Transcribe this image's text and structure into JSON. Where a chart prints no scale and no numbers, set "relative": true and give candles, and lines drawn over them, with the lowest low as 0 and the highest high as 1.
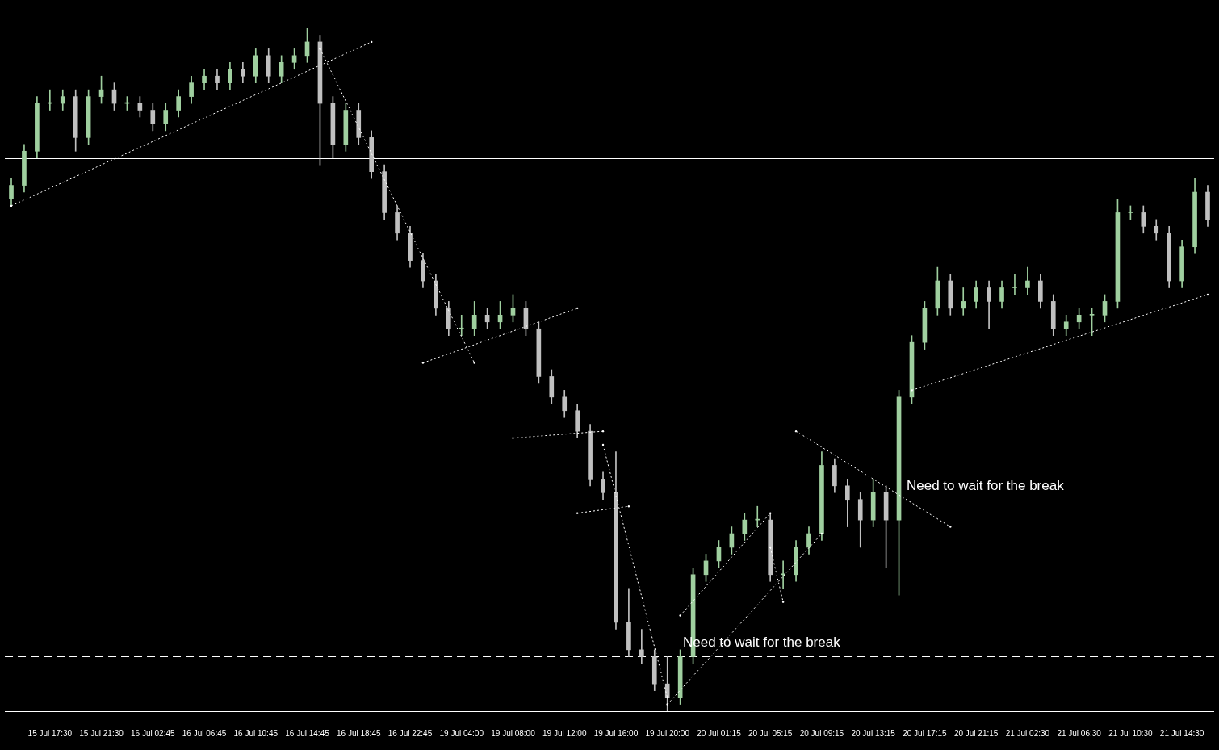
{
  "chart_data": {
    "type": "candlestick",
    "relative": true,
    "categories": [
      null,
      null,
      null,
      "15 Jul 17:30",
      null,
      null,
      null,
      "15 Jul 21:30",
      null,
      null,
      null,
      "16 Jul 02:45",
      null,
      null,
      null,
      "16 Jul 06:45",
      null,
      null,
      null,
      "16 Jul 10:45",
      null,
      null,
      null,
      "16 Jul 14:45",
      null,
      null,
      null,
      "16 Jul 18:45",
      null,
      null,
      null,
      "16 Jul 22:45",
      null,
      null,
      null,
      "19 Jul 04:00",
      null,
      null,
      null,
      "19 Jul 08:00",
      null,
      null,
      null,
      "19 Jul 12:00",
      null,
      null,
      null,
      "19 Jul 16:00",
      null,
      null,
      null,
      "19 Jul 20:00",
      null,
      null,
      null,
      "20 Jul 01:15",
      null,
      null,
      null,
      "20 Jul 05:15",
      null,
      null,
      null,
      "20 Jul 09:15",
      null,
      null,
      null,
      "20 Jul 13:15",
      null,
      null,
      null,
      "20 Jul 17:15",
      null,
      null,
      null,
      "20 Jul 21:15",
      null,
      null,
      null,
      "21 Jul 02:30",
      null,
      null,
      null,
      "21 Jul 06:30",
      null,
      null,
      null,
      "21 Jul 10:30",
      null,
      null,
      null,
      "21 Jul 14:30",
      null,
      null
    ],
    "series": [
      {
        "type": "candlestick",
        "colors": [
          "#9fcf9f",
          "#9fcf9f",
          "#9fcf9f",
          "#9fcf9f",
          "#9fcf9f",
          "#c0c0c0",
          "#9fcf9f",
          "#9fcf9f",
          "#c0c0c0",
          "#9fcf9f",
          "#c0c0c0",
          "#c0c0c0",
          "#9fcf9f",
          "#9fcf9f",
          "#9fcf9f",
          "#9fcf9f",
          "#c0c0c0",
          "#9fcf9f",
          "#c0c0c0",
          "#9fcf9f",
          "#c0c0c0",
          "#9fcf9f",
          "#9fcf9f",
          "#9fcf9f",
          "#c0c0c0",
          "#c0c0c0",
          "#9fcf9f",
          "#c0c0c0",
          "#c0c0c0",
          "#c0c0c0",
          "#c0c0c0",
          "#c0c0c0",
          "#c0c0c0",
          "#c0c0c0",
          "#c0c0c0",
          "#9fcf9f",
          "#9fcf9f",
          "#c0c0c0",
          "#9fcf9f",
          "#9fcf9f",
          "#c0c0c0",
          "#c0c0c0",
          "#c0c0c0",
          "#c0c0c0",
          "#c0c0c0",
          "#c0c0c0",
          "#c0c0c0",
          "#c0c0c0",
          "#c0c0c0",
          "#c0c0c0",
          "#c0c0c0",
          "#c0c0c0",
          "#9fcf9f",
          "#9fcf9f",
          "#9fcf9f",
          "#9fcf9f",
          "#9fcf9f",
          "#9fcf9f",
          "#9fcf9f",
          "#c0c0c0",
          "#9fcf9f",
          "#9fcf9f",
          "#9fcf9f",
          "#9fcf9f",
          "#c0c0c0",
          "#c0c0c0",
          "#c0c0c0",
          "#9fcf9f",
          "#c0c0c0",
          "#9fcf9f",
          "#9fcf9f",
          "#9fcf9f",
          "#9fcf9f",
          "#c0c0c0",
          "#9fcf9f",
          "#9fcf9f",
          "#c0c0c0",
          "#9fcf9f",
          "#9fcf9f",
          "#9fcf9f",
          "#c0c0c0",
          "#c0c0c0",
          "#9fcf9f",
          "#9fcf9f",
          "#9fcf9f",
          "#9fcf9f",
          "#9fcf9f",
          "#9fcf9f",
          "#c0c0c0",
          "#c0c0c0",
          "#c0c0c0",
          "#9fcf9f",
          "#9fcf9f",
          "#c0c0c0"
        ],
        "ohlc": [
          [
            0.75,
            0.78,
            0.74,
            0.77
          ],
          [
            0.77,
            0.83,
            0.76,
            0.82
          ],
          [
            0.82,
            0.9,
            0.81,
            0.89
          ],
          [
            0.89,
            0.91,
            0.88,
            0.89
          ],
          [
            0.89,
            0.91,
            0.88,
            0.9
          ],
          [
            0.9,
            0.91,
            0.82,
            0.84
          ],
          [
            0.84,
            0.91,
            0.83,
            0.9
          ],
          [
            0.9,
            0.93,
            0.89,
            0.91
          ],
          [
            0.91,
            0.92,
            0.88,
            0.89
          ],
          [
            0.89,
            0.9,
            0.88,
            0.89
          ],
          [
            0.89,
            0.9,
            0.87,
            0.88
          ],
          [
            0.88,
            0.89,
            0.85,
            0.86
          ],
          [
            0.86,
            0.89,
            0.85,
            0.88
          ],
          [
            0.88,
            0.91,
            0.87,
            0.9
          ],
          [
            0.9,
            0.93,
            0.89,
            0.92
          ],
          [
            0.92,
            0.94,
            0.91,
            0.93
          ],
          [
            0.93,
            0.94,
            0.91,
            0.92
          ],
          [
            0.92,
            0.95,
            0.91,
            0.94
          ],
          [
            0.94,
            0.95,
            0.92,
            0.93
          ],
          [
            0.93,
            0.97,
            0.92,
            0.96
          ],
          [
            0.96,
            0.97,
            0.92,
            0.93
          ],
          [
            0.93,
            0.96,
            0.92,
            0.95
          ],
          [
            0.95,
            0.97,
            0.94,
            0.96
          ],
          [
            0.96,
            1,
            0.95,
            0.98
          ],
          [
            0.98,
            0.99,
            0.8,
            0.89
          ],
          [
            0.89,
            0.9,
            0.81,
            0.83
          ],
          [
            0.83,
            0.89,
            0.82,
            0.88
          ],
          [
            0.88,
            0.89,
            0.83,
            0.84
          ],
          [
            0.84,
            0.85,
            0.78,
            0.79
          ],
          [
            0.79,
            0.8,
            0.72,
            0.73
          ],
          [
            0.73,
            0.74,
            0.69,
            0.7
          ],
          [
            0.7,
            0.71,
            0.65,
            0.66
          ],
          [
            0.66,
            0.67,
            0.62,
            0.63
          ],
          [
            0.63,
            0.64,
            0.58,
            0.59
          ],
          [
            0.59,
            0.6,
            0.55,
            0.56
          ],
          [
            0.56,
            0.58,
            0.55,
            0.56
          ],
          [
            0.56,
            0.6,
            0.55,
            0.58
          ],
          [
            0.58,
            0.59,
            0.56,
            0.57
          ],
          [
            0.57,
            0.6,
            0.56,
            0.58
          ],
          [
            0.58,
            0.61,
            0.57,
            0.59
          ],
          [
            0.59,
            0.6,
            0.55,
            0.56
          ],
          [
            0.56,
            0.57,
            0.48,
            0.49
          ],
          [
            0.49,
            0.5,
            0.45,
            0.46
          ],
          [
            0.46,
            0.47,
            0.43,
            0.44
          ],
          [
            0.44,
            0.45,
            0.4,
            0.41
          ],
          [
            0.41,
            0.42,
            0.33,
            0.34
          ],
          [
            0.34,
            0.35,
            0.31,
            0.32
          ],
          [
            0.32,
            0.38,
            0.12,
            0.13
          ],
          [
            0.13,
            0.18,
            0.08,
            0.09
          ],
          [
            0.09,
            0.12,
            0.07,
            0.08
          ],
          [
            0.08,
            0.09,
            0.03,
            0.04
          ],
          [
            0.04,
            0.08,
            0,
            0.02
          ],
          [
            0.02,
            0.09,
            0.01,
            0.08
          ],
          [
            0.08,
            0.21,
            0.07,
            0.2
          ],
          [
            0.2,
            0.23,
            0.19,
            0.22
          ],
          [
            0.22,
            0.25,
            0.21,
            0.24
          ],
          [
            0.24,
            0.27,
            0.23,
            0.26
          ],
          [
            0.26,
            0.29,
            0.25,
            0.28
          ],
          [
            0.28,
            0.3,
            0.27,
            0.28
          ],
          [
            0.28,
            0.29,
            0.19,
            0.2
          ],
          [
            0.2,
            0.22,
            0.18,
            0.2
          ],
          [
            0.2,
            0.25,
            0.19,
            0.24
          ],
          [
            0.24,
            0.27,
            0.23,
            0.26
          ],
          [
            0.26,
            0.38,
            0.25,
            0.36
          ],
          [
            0.36,
            0.37,
            0.32,
            0.33
          ],
          [
            0.33,
            0.34,
            0.27,
            0.31
          ],
          [
            0.31,
            0.32,
            0.24,
            0.28
          ],
          [
            0.28,
            0.34,
            0.27,
            0.32
          ],
          [
            0.32,
            0.33,
            0.21,
            0.28
          ],
          [
            0.28,
            0.47,
            0.17,
            0.46
          ],
          [
            0.46,
            0.55,
            0.45,
            0.54
          ],
          [
            0.54,
            0.6,
            0.53,
            0.59
          ],
          [
            0.59,
            0.65,
            0.58,
            0.63
          ],
          [
            0.63,
            0.64,
            0.58,
            0.59
          ],
          [
            0.59,
            0.62,
            0.58,
            0.6
          ],
          [
            0.6,
            0.63,
            0.59,
            0.62
          ],
          [
            0.62,
            0.63,
            0.56,
            0.6
          ],
          [
            0.6,
            0.63,
            0.59,
            0.62
          ],
          [
            0.62,
            0.64,
            0.61,
            0.62
          ],
          [
            0.62,
            0.65,
            0.61,
            0.63
          ],
          [
            0.63,
            0.64,
            0.59,
            0.6
          ],
          [
            0.6,
            0.61,
            0.55,
            0.56
          ],
          [
            0.56,
            0.58,
            0.55,
            0.57
          ],
          [
            0.57,
            0.59,
            0.56,
            0.58
          ],
          [
            0.58,
            0.59,
            0.55,
            0.58
          ],
          [
            0.58,
            0.61,
            0.57,
            0.6
          ],
          [
            0.6,
            0.75,
            0.59,
            0.73
          ],
          [
            0.73,
            0.74,
            0.72,
            0.73
          ],
          [
            0.73,
            0.74,
            0.7,
            0.71
          ],
          [
            0.71,
            0.72,
            0.69,
            0.7
          ],
          [
            0.7,
            0.71,
            0.62,
            0.63
          ],
          [
            0.63,
            0.69,
            0.62,
            0.68
          ],
          [
            0.68,
            0.78,
            0.67,
            0.76
          ],
          [
            0.76,
            0.77,
            0.71,
            0.72
          ]
        ]
      },
      {
        "type": "line",
        "color": "#ffffff",
        "line_style": "dotted",
        "values": [
          0.74,
          null,
          null,
          null,
          null,
          null,
          null,
          null,
          null,
          null,
          null,
          null,
          null,
          null,
          null,
          null,
          null,
          null,
          null,
          null,
          null,
          null,
          null,
          null,
          null,
          null,
          null,
          null,
          0.98,
          null,
          null,
          null,
          null,
          null,
          null,
          null,
          null,
          null,
          null,
          null,
          null,
          null,
          null,
          null,
          null,
          null,
          null,
          null,
          null,
          null,
          null,
          null,
          null,
          null,
          null,
          null,
          null,
          null,
          null,
          null,
          null,
          null,
          null,
          null,
          null,
          null,
          null,
          null,
          null,
          null,
          null,
          null,
          null,
          null,
          null,
          null,
          null,
          null,
          null,
          null,
          null,
          null,
          null,
          null,
          null,
          null,
          null,
          null,
          null,
          null,
          null,
          null,
          null,
          null
        ]
      },
      {
        "type": "line",
        "color": "#ffffff",
        "line_style": "dotted",
        "values": [
          null,
          null,
          null,
          null,
          null,
          null,
          null,
          null,
          null,
          null,
          null,
          null,
          null,
          null,
          null,
          null,
          null,
          null,
          null,
          null,
          null,
          null,
          null,
          null,
          0.97,
          null,
          null,
          null,
          null,
          null,
          null,
          null,
          null,
          null,
          null,
          null,
          0.51,
          null,
          null,
          null,
          null,
          null,
          null,
          null,
          null,
          null,
          null,
          null,
          null,
          null,
          null,
          null,
          null,
          null,
          null,
          null,
          null,
          null,
          null,
          null,
          null,
          null,
          null,
          null,
          null,
          null,
          null,
          null,
          null,
          null,
          null,
          null,
          null,
          null,
          null,
          null,
          null,
          null,
          null,
          null,
          null,
          null,
          null,
          null,
          null,
          null,
          null,
          null,
          null,
          null,
          null,
          null,
          null,
          null
        ]
      },
      {
        "type": "line",
        "color": "#ffffff",
        "line_style": "dotted",
        "values": [
          null,
          null,
          null,
          null,
          null,
          null,
          null,
          null,
          null,
          null,
          null,
          null,
          null,
          null,
          null,
          null,
          null,
          null,
          null,
          null,
          null,
          null,
          null,
          null,
          null,
          null,
          null,
          null,
          null,
          null,
          null,
          null,
          0.51,
          null,
          null,
          null,
          null,
          null,
          null,
          null,
          null,
          null,
          null,
          null,
          0.59,
          null,
          null,
          null,
          null,
          null,
          null,
          null,
          null,
          null,
          null,
          null,
          null,
          null,
          null,
          null,
          null,
          null,
          null,
          null,
          null,
          null,
          null,
          null,
          null,
          null,
          null,
          null,
          null,
          null,
          null,
          null,
          null,
          null,
          null,
          null,
          null,
          null,
          null,
          null,
          null,
          null,
          null,
          null,
          null,
          null,
          null,
          null,
          null,
          null
        ]
      },
      {
        "type": "line",
        "color": "#ffffff",
        "line_style": "dotted",
        "values": [
          null,
          null,
          null,
          null,
          null,
          null,
          null,
          null,
          null,
          null,
          null,
          null,
          null,
          null,
          null,
          null,
          null,
          null,
          null,
          null,
          null,
          null,
          null,
          null,
          null,
          null,
          null,
          null,
          null,
          null,
          null,
          null,
          null,
          null,
          null,
          null,
          null,
          null,
          null,
          0.4,
          null,
          null,
          null,
          null,
          null,
          null,
          0.41,
          null,
          null,
          null,
          null,
          null,
          null,
          null,
          null,
          null,
          null,
          null,
          null,
          null,
          null,
          null,
          null,
          null,
          null,
          null,
          null,
          null,
          null,
          null,
          null,
          null,
          null,
          null,
          null,
          null,
          null,
          null,
          null,
          null,
          null,
          null,
          null,
          null,
          null,
          null,
          null,
          null,
          null,
          null,
          null,
          null,
          null,
          null
        ]
      },
      {
        "type": "line",
        "color": "#ffffff",
        "line_style": "dotted",
        "values": [
          null,
          null,
          null,
          null,
          null,
          null,
          null,
          null,
          null,
          null,
          null,
          null,
          null,
          null,
          null,
          null,
          null,
          null,
          null,
          null,
          null,
          null,
          null,
          null,
          null,
          null,
          null,
          null,
          null,
          null,
          null,
          null,
          null,
          null,
          null,
          null,
          null,
          null,
          null,
          null,
          null,
          null,
          null,
          null,
          0.29,
          null,
          null,
          null,
          0.3,
          null,
          null,
          null,
          null,
          null,
          null,
          null,
          null,
          null,
          null,
          null,
          null,
          null,
          null,
          null,
          null,
          null,
          null,
          null,
          null,
          null,
          null,
          null,
          null,
          null,
          null,
          null,
          null,
          null,
          null,
          null,
          null,
          null,
          null,
          null,
          null,
          null,
          null,
          null,
          null,
          null,
          null,
          null,
          null,
          null
        ]
      },
      {
        "type": "line",
        "color": "#ffffff",
        "line_style": "dotted",
        "values": [
          null,
          null,
          null,
          null,
          null,
          null,
          null,
          null,
          null,
          null,
          null,
          null,
          null,
          null,
          null,
          null,
          null,
          null,
          null,
          null,
          null,
          null,
          null,
          null,
          null,
          null,
          null,
          null,
          null,
          null,
          null,
          null,
          null,
          null,
          null,
          null,
          null,
          null,
          null,
          null,
          null,
          null,
          null,
          null,
          null,
          null,
          0.39,
          null,
          null,
          null,
          null,
          0.02,
          null,
          null,
          null,
          null,
          null,
          null,
          null,
          null,
          null,
          null,
          null,
          null,
          null,
          null,
          null,
          null,
          null,
          null,
          null,
          null,
          null,
          null,
          null,
          null,
          null,
          null,
          null,
          null,
          null,
          null,
          null,
          null,
          null,
          null,
          null,
          null,
          null,
          null,
          null,
          null,
          null,
          null
        ]
      },
      {
        "type": "line",
        "color": "#ffffff",
        "line_style": "dotted",
        "values": [
          null,
          null,
          null,
          null,
          null,
          null,
          null,
          null,
          null,
          null,
          null,
          null,
          null,
          null,
          null,
          null,
          null,
          null,
          null,
          null,
          null,
          null,
          null,
          null,
          null,
          null,
          null,
          null,
          null,
          null,
          null,
          null,
          null,
          null,
          null,
          null,
          null,
          null,
          null,
          null,
          null,
          null,
          null,
          null,
          null,
          null,
          null,
          null,
          null,
          null,
          null,
          null,
          0.14,
          null,
          null,
          null,
          null,
          null,
          null,
          0.29,
          null,
          null,
          null,
          null,
          null,
          null,
          null,
          null,
          null,
          null,
          null,
          null,
          null,
          null,
          null,
          null,
          null,
          null,
          null,
          null,
          null,
          null,
          null,
          null,
          null,
          null,
          null,
          null,
          null,
          null,
          null,
          null,
          null,
          null
        ]
      },
      {
        "type": "line",
        "color": "#ffffff",
        "line_style": "dotted",
        "values": [
          null,
          null,
          null,
          null,
          null,
          null,
          null,
          null,
          null,
          null,
          null,
          null,
          null,
          null,
          null,
          null,
          null,
          null,
          null,
          null,
          null,
          null,
          null,
          null,
          null,
          null,
          null,
          null,
          null,
          null,
          null,
          null,
          null,
          null,
          null,
          null,
          null,
          null,
          null,
          null,
          null,
          null,
          null,
          null,
          null,
          null,
          null,
          null,
          null,
          null,
          null,
          0.01,
          null,
          null,
          null,
          null,
          null,
          null,
          null,
          null,
          null,
          null,
          null,
          0.26,
          null,
          null,
          null,
          null,
          null,
          null,
          null,
          null,
          null,
          null,
          null,
          null,
          null,
          null,
          null,
          null,
          null,
          null,
          null,
          null,
          null,
          null,
          null,
          null,
          null,
          null,
          null,
          null,
          null,
          null
        ]
      },
      {
        "type": "line",
        "color": "#ffffff",
        "line_style": "dotted",
        "values": [
          null,
          null,
          null,
          null,
          null,
          null,
          null,
          null,
          null,
          null,
          null,
          null,
          null,
          null,
          null,
          null,
          null,
          null,
          null,
          null,
          null,
          null,
          null,
          null,
          null,
          null,
          null,
          null,
          null,
          null,
          null,
          null,
          null,
          null,
          null,
          null,
          null,
          null,
          null,
          null,
          null,
          null,
          null,
          null,
          null,
          null,
          null,
          null,
          null,
          null,
          null,
          null,
          null,
          null,
          null,
          null,
          null,
          null,
          null,
          0.24,
          0.16,
          null,
          null,
          null,
          null,
          null,
          null,
          null,
          null,
          null,
          null,
          null,
          null,
          null,
          null,
          null,
          null,
          null,
          null,
          null,
          null,
          null,
          null,
          null,
          null,
          null,
          null,
          null,
          null,
          null,
          null,
          null,
          null,
          null
        ]
      },
      {
        "type": "line",
        "color": "#ffffff",
        "line_style": "dotted",
        "values": [
          null,
          null,
          null,
          null,
          null,
          null,
          null,
          null,
          null,
          null,
          null,
          null,
          null,
          null,
          null,
          null,
          null,
          null,
          null,
          null,
          null,
          null,
          null,
          null,
          null,
          null,
          null,
          null,
          null,
          null,
          null,
          null,
          null,
          null,
          null,
          null,
          null,
          null,
          null,
          null,
          null,
          null,
          null,
          null,
          null,
          null,
          null,
          null,
          null,
          null,
          null,
          null,
          null,
          null,
          null,
          null,
          null,
          null,
          null,
          null,
          null,
          0.41,
          null,
          null,
          null,
          null,
          null,
          null,
          null,
          null,
          null,
          null,
          null,
          0.27,
          null,
          null,
          null,
          null,
          null,
          null,
          null,
          null,
          null,
          null,
          null,
          null,
          null,
          null,
          null,
          null,
          null,
          null,
          null,
          null
        ]
      },
      {
        "type": "line",
        "color": "#ffffff",
        "line_style": "dotted",
        "values": [
          null,
          null,
          null,
          null,
          null,
          null,
          null,
          null,
          null,
          null,
          null,
          null,
          null,
          null,
          null,
          null,
          null,
          null,
          null,
          null,
          null,
          null,
          null,
          null,
          null,
          null,
          null,
          null,
          null,
          null,
          null,
          null,
          null,
          null,
          null,
          null,
          null,
          null,
          null,
          null,
          null,
          null,
          null,
          null,
          null,
          null,
          null,
          null,
          null,
          null,
          null,
          null,
          null,
          null,
          null,
          null,
          null,
          null,
          null,
          null,
          null,
          null,
          null,
          null,
          null,
          null,
          null,
          null,
          null,
          null,
          0.47,
          null,
          null,
          null,
          null,
          null,
          null,
          null,
          null,
          null,
          null,
          null,
          null,
          null,
          null,
          null,
          null,
          null,
          null,
          null,
          null,
          null,
          null,
          0.61
        ]
      }
    ],
    "ref_lines": [
      {
        "axis": "y",
        "value": 0.81,
        "color": "#ffffff",
        "line_style": "solid"
      },
      {
        "axis": "y",
        "value": 0.56,
        "color": "#ffffff",
        "line_style": "dashed"
      },
      {
        "axis": "y",
        "value": 0.08,
        "color": "#ffffff",
        "line_style": "dashed"
      }
    ],
    "annotations": [
      "Need to wait for the break",
      "Need to wait for the break"
    ]
  }
}
